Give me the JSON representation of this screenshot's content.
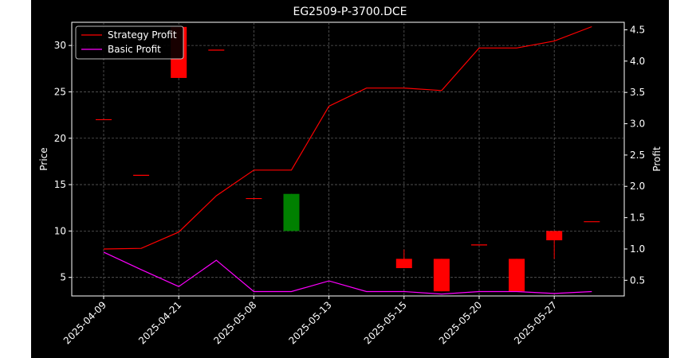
{
  "chart_data": {
    "type": "candlestick+line",
    "title": "EG2509-P-3700.DCE",
    "ylabel_left": "Price",
    "ylabel_right": "Profit",
    "ylim_left": [
      3.0,
      32.5
    ],
    "ylim_right": [
      0.25,
      4.62
    ],
    "yticks_left": [
      5,
      10,
      15,
      20,
      25,
      30
    ],
    "yticks_right": [
      0.5,
      1.0,
      1.5,
      2.0,
      2.5,
      3.0,
      3.5,
      4.0,
      4.5
    ],
    "xtick_labels": [
      "2025-04-09",
      "2025-04-21",
      "2025-05-08",
      "2025-05-13",
      "2025-05-15",
      "2025-05-20",
      "2025-05-27"
    ],
    "xtick_positions": [
      0,
      2,
      4,
      6,
      8,
      10,
      12
    ],
    "grid": true,
    "legend_position": "top-left",
    "colors": {
      "background": "#000000",
      "axes": "#ffffff",
      "grid": "#808080",
      "strategy": "#ff0000",
      "basic": "#ff00ff",
      "up": "#008000",
      "down": "#ff0000"
    },
    "candles": [
      {
        "i": 0,
        "open": 22.0,
        "close": 22.0,
        "high": 22.0,
        "low": 22.0
      },
      {
        "i": 1,
        "open": 16.0,
        "close": 16.0,
        "high": 16.0,
        "low": 16.0
      },
      {
        "i": 2,
        "open": 32.0,
        "close": 26.5,
        "high": 32.0,
        "low": 26.5
      },
      {
        "i": 3,
        "open": 29.5,
        "close": 29.5,
        "high": 29.5,
        "low": 29.5
      },
      {
        "i": 4,
        "open": 13.5,
        "close": 13.5,
        "high": 13.5,
        "low": 13.5
      },
      {
        "i": 5,
        "open": 10.0,
        "close": 14.0,
        "high": 14.0,
        "low": 10.0
      },
      {
        "i": 8,
        "open": 7.0,
        "close": 6.0,
        "high": 8.0,
        "low": 6.0
      },
      {
        "i": 9,
        "open": 7.0,
        "close": 3.5,
        "high": 7.0,
        "low": 3.5
      },
      {
        "i": 10,
        "open": 8.5,
        "close": 8.5,
        "high": 8.5,
        "low": 8.5
      },
      {
        "i": 11,
        "open": 7.0,
        "close": 3.5,
        "high": 7.0,
        "low": 3.5
      },
      {
        "i": 12,
        "open": 10.0,
        "close": 9.0,
        "high": 10.0,
        "low": 7.0
      },
      {
        "i": 13,
        "open": 11.0,
        "close": 11.0,
        "high": 11.0,
        "low": 11.0
      }
    ],
    "series": [
      {
        "name": "Strategy Profit",
        "color": "#ff0000",
        "x": [
          0,
          1,
          2,
          3,
          4,
          5,
          6,
          7,
          8,
          9,
          10,
          11,
          12,
          13
        ],
        "values": [
          1.0,
          1.01,
          1.27,
          1.85,
          2.26,
          2.26,
          3.28,
          3.57,
          3.57,
          3.53,
          4.21,
          4.21,
          4.32,
          4.55
        ]
      },
      {
        "name": "Basic Profit",
        "color": "#ff00ff",
        "x": [
          0,
          1,
          2,
          3,
          4,
          5,
          6,
          7,
          8,
          9,
          10,
          11,
          12,
          13
        ],
        "values": [
          0.95,
          0.67,
          0.4,
          0.82,
          0.32,
          0.32,
          0.49,
          0.32,
          0.32,
          0.28,
          0.32,
          0.32,
          0.29,
          0.32
        ]
      }
    ]
  }
}
